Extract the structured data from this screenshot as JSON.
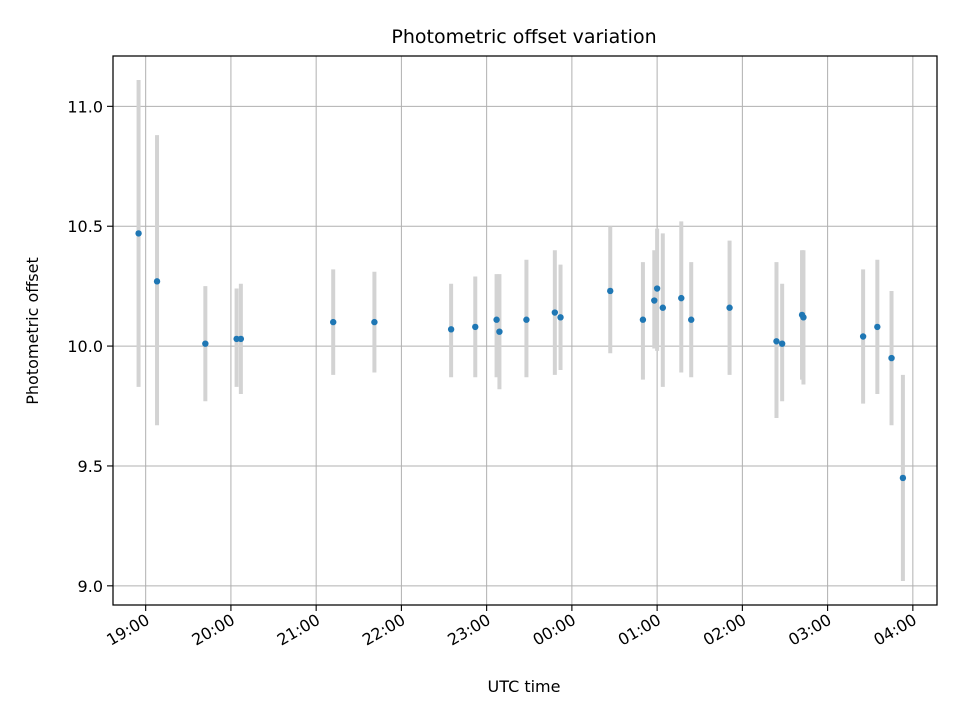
{
  "chart_data": {
    "type": "scatter",
    "title": "Photometric offset variation",
    "xlabel": "UTC time",
    "ylabel": "Photometric offset",
    "grid": true,
    "x_axis_type": "time",
    "x_ticks": [
      "19:00",
      "20:00",
      "21:00",
      "22:00",
      "23:00",
      "00:00",
      "01:00",
      "02:00",
      "03:00",
      "04:00"
    ],
    "y_ticks": [
      "9.0",
      "9.5",
      "10.0",
      "10.5",
      "11.0"
    ],
    "xlim": [
      "18:37",
      "04:17"
    ],
    "ylim": [
      8.92,
      11.21
    ],
    "colors": {
      "point": "#1f77b4",
      "errorbar": "#d3d3d3",
      "grid": "#b0b0b0"
    },
    "series": [
      {
        "points": [
          {
            "x": "18:55",
            "y": 10.47,
            "ymin": 9.83,
            "ymax": 11.11
          },
          {
            "x": "19:08",
            "y": 10.27,
            "ymin": 9.67,
            "ymax": 10.88
          },
          {
            "x": "19:42",
            "y": 10.01,
            "ymin": 9.77,
            "ymax": 10.25
          },
          {
            "x": "20:04",
            "y": 10.03,
            "ymin": 9.83,
            "ymax": 10.24
          },
          {
            "x": "20:07",
            "y": 10.03,
            "ymin": 9.8,
            "ymax": 10.26
          },
          {
            "x": "21:12",
            "y": 10.1,
            "ymin": 9.88,
            "ymax": 10.32
          },
          {
            "x": "21:41",
            "y": 10.1,
            "ymin": 9.89,
            "ymax": 10.31
          },
          {
            "x": "22:35",
            "y": 10.07,
            "ymin": 9.87,
            "ymax": 10.26
          },
          {
            "x": "22:52",
            "y": 10.08,
            "ymin": 9.87,
            "ymax": 10.29
          },
          {
            "x": "23:07",
            "y": 10.11,
            "ymin": 9.87,
            "ymax": 10.3
          },
          {
            "x": "23:09",
            "y": 10.06,
            "ymin": 9.82,
            "ymax": 10.3
          },
          {
            "x": "23:28",
            "y": 10.11,
            "ymin": 9.87,
            "ymax": 10.36
          },
          {
            "x": "23:48",
            "y": 10.14,
            "ymin": 9.88,
            "ymax": 10.4
          },
          {
            "x": "23:52",
            "y": 10.12,
            "ymin": 9.9,
            "ymax": 10.34
          },
          {
            "x": "00:27",
            "y": 10.23,
            "ymin": 9.97,
            "ymax": 10.5
          },
          {
            "x": "00:50",
            "y": 10.11,
            "ymin": 9.86,
            "ymax": 10.35
          },
          {
            "x": "00:58",
            "y": 10.19,
            "ymin": 9.99,
            "ymax": 10.4
          },
          {
            "x": "01:00",
            "y": 10.24,
            "ymin": 9.98,
            "ymax": 10.49
          },
          {
            "x": "01:04",
            "y": 10.16,
            "ymin": 9.83,
            "ymax": 10.47
          },
          {
            "x": "01:17",
            "y": 10.2,
            "ymin": 9.89,
            "ymax": 10.52
          },
          {
            "x": "01:24",
            "y": 10.11,
            "ymin": 9.87,
            "ymax": 10.35
          },
          {
            "x": "01:51",
            "y": 10.16,
            "ymin": 9.88,
            "ymax": 10.44
          },
          {
            "x": "02:24",
            "y": 10.02,
            "ymin": 9.7,
            "ymax": 10.35
          },
          {
            "x": "02:28",
            "y": 10.01,
            "ymin": 9.77,
            "ymax": 10.26
          },
          {
            "x": "02:42",
            "y": 10.13,
            "ymin": 9.86,
            "ymax": 10.4
          },
          {
            "x": "02:43",
            "y": 10.12,
            "ymin": 9.84,
            "ymax": 10.4
          },
          {
            "x": "03:25",
            "y": 10.04,
            "ymin": 9.76,
            "ymax": 10.32
          },
          {
            "x": "03:35",
            "y": 10.08,
            "ymin": 9.8,
            "ymax": 10.36
          },
          {
            "x": "03:45",
            "y": 9.95,
            "ymin": 9.67,
            "ymax": 10.23
          },
          {
            "x": "03:53",
            "y": 9.45,
            "ymin": 9.02,
            "ymax": 9.88
          }
        ]
      }
    ]
  }
}
